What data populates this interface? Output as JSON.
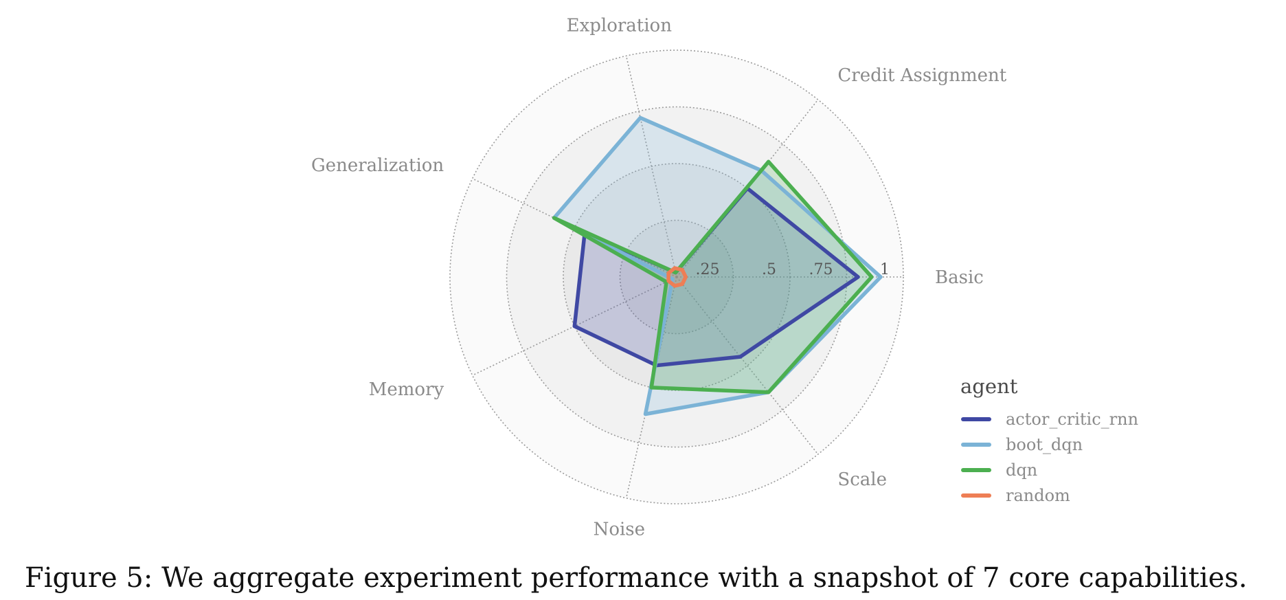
{
  "chart_data": {
    "type": "radar",
    "axes": [
      "Basic",
      "Credit Assignment",
      "Exploration",
      "Generalization",
      "Memory",
      "Noise",
      "Scale"
    ],
    "rlim": [
      0,
      1
    ],
    "ticks": [
      0.25,
      0.5,
      0.75,
      1
    ],
    "tick_labels": [
      ".25",
      ".5",
      ".75",
      "1"
    ],
    "grid": true,
    "legend_title": "agent",
    "legend_position": "bottom-right",
    "series": [
      {
        "name": "actor_critic_rnn",
        "color": "#3f48a3",
        "values": [
          0.8,
          0.5,
          0.02,
          0.45,
          0.5,
          0.4,
          0.45
        ]
      },
      {
        "name": "boot_dqn",
        "color": "#7bb3d6",
        "values": [
          0.9,
          0.6,
          0.72,
          0.6,
          0.02,
          0.62,
          0.65
        ]
      },
      {
        "name": "dqn",
        "color": "#4caf50",
        "values": [
          0.86,
          0.65,
          0.02,
          0.6,
          0.05,
          0.5,
          0.65
        ]
      },
      {
        "name": "random",
        "color": "#ee7e55",
        "values": [
          0.04,
          0.04,
          0.04,
          0.04,
          0.04,
          0.04,
          0.04
        ]
      }
    ]
  },
  "caption": "Figure 5: We aggregate experiment performance with a snapshot of 7 core capabilities."
}
